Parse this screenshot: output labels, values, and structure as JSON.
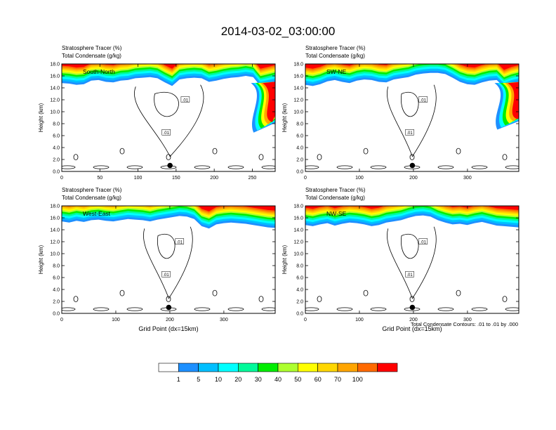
{
  "page": {
    "title": "2014-03-02_03:00:00",
    "contour_note": "Total Condensate Contours: .01 to .01 by .000",
    "contour_label": ".01"
  },
  "chart_data": [
    {
      "type": "heatmap",
      "panel_label": "South-North",
      "header": [
        "Stratosphere Tracer   (%)",
        "Total Condensate   (g/kg)"
      ],
      "ylabel": "Height (km)",
      "xlabel": "",
      "xlim": [
        0,
        280
      ],
      "xticks": [
        0,
        50,
        100,
        150,
        200,
        250
      ],
      "ylim": [
        0,
        18
      ],
      "yticks": [
        "0.0",
        "2.0",
        "4.0",
        "6.0",
        "8.0",
        "10.0",
        "12.0",
        "14.0",
        "16.0",
        "18.0"
      ],
      "tracer_base_km": [
        14.8,
        14.7,
        14.5,
        14.6,
        15.2,
        15.3,
        15.0,
        14.9,
        15.2,
        15.3,
        15.6,
        15.7,
        15.8,
        15.6,
        14.9,
        14.3,
        15.4,
        15.6,
        15.7,
        15.6,
        15.0,
        15.2,
        15.5,
        15.7,
        15.8,
        16.0,
        15.8,
        14.3,
        14.6,
        14.9
      ],
      "tracer_fold": {
        "x": [
          248,
          276
        ],
        "top_km": 15.0,
        "bottom_km": 6.5
      },
      "marker": {
        "x": 142,
        "y_km": 1.0
      }
    },
    {
      "type": "heatmap",
      "panel_label": "SW-NE",
      "header": [
        "Stratosphere Tracer   (%)",
        "Total Condensate   (g/kg)"
      ],
      "ylabel": "Height (km)",
      "xlabel": "",
      "xlim": [
        0,
        395
      ],
      "xticks": [
        0,
        100,
        200,
        300
      ],
      "ylim": [
        0,
        18
      ],
      "yticks": [
        "0.0",
        "2.0",
        "4.0",
        "6.0",
        "8.0",
        "10.0",
        "12.0",
        "14.0",
        "16.0",
        "18.0"
      ],
      "tracer_base_km": [
        14.5,
        14.3,
        14.6,
        15.1,
        15.3,
        15.0,
        14.8,
        15.2,
        15.4,
        15.3,
        15.0,
        14.9,
        15.4,
        15.6,
        15.8,
        16.2,
        16.4,
        16.5,
        16.5,
        16.3,
        15.7,
        15.0,
        14.6,
        14.5,
        14.9,
        15.2,
        15.3,
        14.1,
        14.6,
        14.9
      ],
      "tracer_fold": {
        "x": [
          350,
          395
        ],
        "top_km": 15.0,
        "bottom_km": 7.0
      },
      "marker": {
        "x": 198,
        "y_km": 1.0
      }
    },
    {
      "type": "heatmap",
      "panel_label": "West-East",
      "header": [
        "Stratosphere Tracer   (%)",
        "Total Condensate   (g/kg)"
      ],
      "ylabel": "Height (km)",
      "xlabel": "Grid Point (dx=15km)",
      "xlim": [
        0,
        395
      ],
      "xticks": [
        0,
        100,
        200,
        300
      ],
      "ylim": [
        0,
        18
      ],
      "yticks": [
        "0.0",
        "2.0",
        "4.0",
        "6.0",
        "8.0",
        "10.0",
        "12.0",
        "14.0",
        "16.0",
        "18.0"
      ],
      "tracer_base_km": [
        15.4,
        15.2,
        15.5,
        15.3,
        15.6,
        15.7,
        15.5,
        15.4,
        15.6,
        15.8,
        15.7,
        15.6,
        15.4,
        15.7,
        15.9,
        16.1,
        16.3,
        16.2,
        15.8,
        14.6,
        14.2,
        14.9,
        15.1,
        15.2,
        15.1,
        15.0,
        14.8,
        14.6,
        14.4,
        14.3
      ],
      "tracer_fold": null,
      "marker": {
        "x": 198,
        "y_km": 1.0
      }
    },
    {
      "type": "heatmap",
      "panel_label": "NW-SE",
      "header": [
        "Stratosphere Tracer   (%)",
        "Total Condensate   (g/kg)"
      ],
      "ylabel": "Height (km)",
      "xlabel": "Grid Point (dx=15km)",
      "xlim": [
        0,
        395
      ],
      "xticks": [
        0,
        100,
        200,
        300
      ],
      "ylim": [
        0,
        18
      ],
      "yticks": [
        "0.0",
        "2.0",
        "4.0",
        "6.0",
        "8.0",
        "10.0",
        "12.0",
        "14.0",
        "16.0",
        "18.0"
      ],
      "tracer_base_km": [
        14.8,
        14.6,
        14.9,
        15.1,
        14.7,
        15.0,
        15.2,
        15.1,
        14.9,
        14.6,
        14.8,
        15.2,
        15.4,
        15.6,
        16.0,
        16.3,
        16.4,
        16.2,
        15.6,
        15.2,
        14.9,
        15.0,
        14.8,
        15.1,
        15.3,
        15.0,
        14.7,
        14.6,
        14.5,
        14.4
      ],
      "tracer_fold": null,
      "marker": {
        "x": 198,
        "y_km": 1.0
      }
    }
  ],
  "colorbar": {
    "levels": [
      "1",
      "5",
      "10",
      "20",
      "30",
      "40",
      "50",
      "60",
      "70",
      "100"
    ],
    "colors": [
      "#ffffff",
      "#1e90ff",
      "#00bfff",
      "#00ffff",
      "#00fa9a",
      "#00ee00",
      "#adff2f",
      "#ffff00",
      "#ffd700",
      "#ffa500",
      "#ff6a00",
      "#ff0000"
    ]
  }
}
